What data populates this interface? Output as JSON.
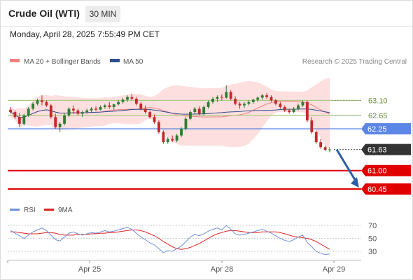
{
  "header": {
    "instrument": "Crude Oil (WTI)",
    "timeframe": "30 MIN",
    "timestamp": "Monday, April 28, 2025 7:55:49 PM CET"
  },
  "legend": {
    "ma20_bb": "MA 20 + Bollinger Bands",
    "ma50": "MA 50",
    "credit": "Research © 2025 Trading Central",
    "rsi": "RSI",
    "rsi_ma": "9MA"
  },
  "colors": {
    "up": "#2e7d32",
    "down": "#c62828",
    "ma20": "#f08080",
    "ma50": "#2f4f8f",
    "bollinger": "#fdd9d9",
    "resistance": "#a8cc80",
    "pivot": "#5b86e5",
    "support": "#e00000",
    "last": "#333333",
    "arrow": "#2a5fa8",
    "rsi": "#6f8fd8",
    "rsi_ma": "#dd2222"
  },
  "chart_data": [
    {
      "type": "candlestick",
      "x_ticks": [
        "Apr 25",
        "Apr 28",
        "Apr 29"
      ],
      "ylim": [
        60.3,
        63.5
      ],
      "levels": [
        {
          "label": "63.10",
          "value": 63.1,
          "kind": "resistance"
        },
        {
          "label": "62.65",
          "value": 62.65,
          "kind": "resistance"
        },
        {
          "label": "62.25",
          "value": 62.25,
          "kind": "pivot"
        },
        {
          "label": "61.63",
          "value": 61.63,
          "kind": "last"
        },
        {
          "label": "61.00",
          "value": 61.0,
          "kind": "support"
        },
        {
          "label": "60.45",
          "value": 60.45,
          "kind": "support"
        }
      ],
      "arrow": {
        "from_value": 61.63,
        "to_value": 60.45
      },
      "candles": [
        [
          62.82,
          62.9,
          62.7,
          62.75
        ],
        [
          62.75,
          62.8,
          62.55,
          62.6
        ],
        [
          62.6,
          62.72,
          62.3,
          62.4
        ],
        [
          62.4,
          62.7,
          62.35,
          62.65
        ],
        [
          62.65,
          62.9,
          62.6,
          62.85
        ],
        [
          62.85,
          63.05,
          62.8,
          63.0
        ],
        [
          63.0,
          63.15,
          62.95,
          63.1
        ],
        [
          63.1,
          63.25,
          62.95,
          63.05
        ],
        [
          63.05,
          63.1,
          62.9,
          62.95
        ],
        [
          62.95,
          63.0,
          62.55,
          62.6
        ],
        [
          62.6,
          62.7,
          62.25,
          62.3
        ],
        [
          62.3,
          62.45,
          62.15,
          62.4
        ],
        [
          62.4,
          62.7,
          62.35,
          62.65
        ],
        [
          62.65,
          62.9,
          62.6,
          62.85
        ],
        [
          62.85,
          62.95,
          62.7,
          62.8
        ],
        [
          62.8,
          62.85,
          62.65,
          62.7
        ],
        [
          62.7,
          62.8,
          62.6,
          62.75
        ],
        [
          62.75,
          62.85,
          62.7,
          62.8
        ],
        [
          62.8,
          62.9,
          62.75,
          62.85
        ],
        [
          62.85,
          62.92,
          62.78,
          62.82
        ],
        [
          62.82,
          62.95,
          62.8,
          62.9
        ],
        [
          62.9,
          63.0,
          62.85,
          62.95
        ],
        [
          62.95,
          63.05,
          62.85,
          62.9
        ],
        [
          62.9,
          63.0,
          62.82,
          62.98
        ],
        [
          62.98,
          63.1,
          62.95,
          63.05
        ],
        [
          63.05,
          63.18,
          63.0,
          63.12
        ],
        [
          63.12,
          63.25,
          63.05,
          63.2
        ],
        [
          63.2,
          63.3,
          63.1,
          63.15
        ],
        [
          63.15,
          63.2,
          62.95,
          63.0
        ],
        [
          63.0,
          63.05,
          62.8,
          62.85
        ],
        [
          62.85,
          62.95,
          62.7,
          62.75
        ],
        [
          62.75,
          62.8,
          62.55,
          62.6
        ],
        [
          62.6,
          62.68,
          62.4,
          62.45
        ],
        [
          62.45,
          62.5,
          62.1,
          62.15
        ],
        [
          62.15,
          62.2,
          61.8,
          61.85
        ],
        [
          61.85,
          62.0,
          61.8,
          61.95
        ],
        [
          61.95,
          62.05,
          61.85,
          61.9
        ],
        [
          61.9,
          62.1,
          61.85,
          62.05
        ],
        [
          62.05,
          62.3,
          62.0,
          62.25
        ],
        [
          62.25,
          62.6,
          62.2,
          62.55
        ],
        [
          62.55,
          62.8,
          62.5,
          62.75
        ],
        [
          62.75,
          62.9,
          62.7,
          62.85
        ],
        [
          62.85,
          62.92,
          62.65,
          62.7
        ],
        [
          62.7,
          62.95,
          62.65,
          62.9
        ],
        [
          62.9,
          63.1,
          62.85,
          63.05
        ],
        [
          63.05,
          63.2,
          63.0,
          63.15
        ],
        [
          63.15,
          63.25,
          63.05,
          63.2
        ],
        [
          63.2,
          63.28,
          63.1,
          63.18
        ],
        [
          63.18,
          63.55,
          63.15,
          63.35
        ],
        [
          63.35,
          63.4,
          63.1,
          63.15
        ],
        [
          63.15,
          63.22,
          62.95,
          63.0
        ],
        [
          63.0,
          63.05,
          62.85,
          62.95
        ],
        [
          62.95,
          63.05,
          62.88,
          63.0
        ],
        [
          63.0,
          63.1,
          62.95,
          63.05
        ],
        [
          63.05,
          63.15,
          63.0,
          63.12
        ],
        [
          63.12,
          63.22,
          63.05,
          63.18
        ],
        [
          63.18,
          63.3,
          63.12,
          63.25
        ],
        [
          63.25,
          63.32,
          63.15,
          63.2
        ],
        [
          63.2,
          63.25,
          63.05,
          63.1
        ],
        [
          63.1,
          63.15,
          62.95,
          63.0
        ],
        [
          63.0,
          63.05,
          62.85,
          62.9
        ],
        [
          62.9,
          62.95,
          62.75,
          62.8
        ],
        [
          62.8,
          62.85,
          62.7,
          62.75
        ],
        [
          62.75,
          62.9,
          62.72,
          62.85
        ],
        [
          62.85,
          63.0,
          62.8,
          62.95
        ],
        [
          62.95,
          63.1,
          62.9,
          63.05
        ],
        [
          63.05,
          63.1,
          62.45,
          62.5
        ],
        [
          62.5,
          62.6,
          62.1,
          62.15
        ],
        [
          62.15,
          62.2,
          61.8,
          61.85
        ],
        [
          61.85,
          61.95,
          61.65,
          61.7
        ],
        [
          61.7,
          61.75,
          61.58,
          61.62
        ],
        [
          61.62,
          61.7,
          61.55,
          61.63
        ]
      ]
    },
    {
      "type": "line",
      "name": "RSI",
      "yticks": [
        30,
        50,
        70
      ],
      "ylim": [
        20,
        80
      ],
      "series": [
        {
          "name": "RSI",
          "values": [
            62,
            58,
            54,
            50,
            55,
            60,
            63,
            66,
            62,
            55,
            48,
            46,
            52,
            58,
            60,
            57,
            55,
            57,
            59,
            58,
            60,
            62,
            60,
            61,
            63,
            65,
            67,
            64,
            58,
            52,
            48,
            43,
            40,
            34,
            28,
            31,
            30,
            34,
            38,
            45,
            52,
            56,
            54,
            57,
            61,
            64,
            66,
            63,
            70,
            64,
            57,
            55,
            56,
            58,
            60,
            62,
            64,
            61,
            58,
            54,
            50,
            47,
            45,
            48,
            52,
            55,
            44,
            37,
            30,
            27,
            25,
            26
          ]
        },
        {
          "name": "9MA",
          "values": [
            60,
            60,
            59,
            58,
            57,
            57,
            57,
            58,
            59,
            59,
            58,
            56,
            55,
            55,
            55,
            56,
            56,
            56,
            57,
            57,
            58,
            58,
            59,
            59,
            60,
            61,
            62,
            63,
            63,
            62,
            60,
            57,
            54,
            50,
            45,
            41,
            37,
            34,
            33,
            34,
            36,
            39,
            42,
            46,
            50,
            54,
            57,
            59,
            61,
            62,
            62,
            61,
            60,
            59,
            59,
            59,
            60,
            60,
            60,
            60,
            59,
            57,
            55,
            53,
            52,
            51,
            50,
            48,
            45,
            41,
            37,
            33
          ]
        }
      ]
    }
  ]
}
